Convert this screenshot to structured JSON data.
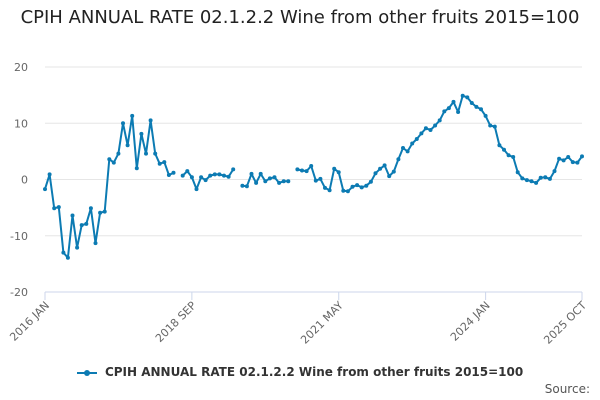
{
  "title": "CPIH ANNUAL RATE 02.1.2.2 Wine from other fruits 2015=100",
  "source_label": "Source:",
  "colors": {
    "series": "#0c7bb3",
    "grid": "#e6e6e6",
    "axis": "#ccd6eb",
    "text": "#666666"
  },
  "chart_data": {
    "type": "line",
    "title": "CPIH ANNUAL RATE 02.1.2.2 Wine from other fruits 2015=100",
    "xlabel": "",
    "ylabel": "",
    "ylim": [
      -20,
      20
    ],
    "yticks": [
      -20,
      -10,
      0,
      10,
      20
    ],
    "x_start": "2016 JAN",
    "xticks": [
      {
        "index": 0,
        "label": "2016 JAN"
      },
      {
        "index": 32,
        "label": "2018 SEP"
      },
      {
        "index": 64,
        "label": "2021 MAY"
      },
      {
        "index": 96,
        "label": "2024 JAN"
      },
      {
        "index": 117,
        "label": "2025 OCT"
      }
    ],
    "legend": "bottom-center",
    "series": [
      {
        "name": "CPIH ANNUAL RATE 02.1.2.2 Wine from other fruits 2015=100",
        "values": [
          -1.7,
          0.9,
          -5.1,
          -4.9,
          -13.0,
          -13.9,
          -6.4,
          -12.1,
          -8.1,
          -7.9,
          -5.1,
          -11.3,
          -5.9,
          -5.7,
          3.6,
          3.0,
          4.6,
          10.0,
          6.1,
          11.3,
          2.0,
          8.1,
          4.6,
          10.5,
          4.6,
          2.8,
          3.1,
          0.8,
          1.2,
          null,
          0.7,
          1.5,
          0.4,
          -1.7,
          0.4,
          -0.1,
          0.7,
          0.9,
          0.9,
          0.7,
          0.5,
          1.8,
          null,
          -1.1,
          -1.2,
          1.0,
          -0.6,
          1.0,
          -0.3,
          0.2,
          0.4,
          -0.6,
          -0.3,
          -0.3,
          null,
          1.8,
          1.6,
          1.5,
          2.4,
          -0.2,
          0.1,
          -1.5,
          -1.9,
          1.9,
          1.3,
          -2.0,
          -2.1,
          -1.3,
          -1.0,
          -1.4,
          -1.1,
          -0.4,
          1.1,
          1.9,
          2.5,
          0.6,
          1.4,
          3.6,
          5.6,
          5.0,
          6.4,
          7.2,
          8.2,
          9.1,
          8.8,
          9.6,
          10.5,
          12.1,
          12.7,
          13.8,
          12.0,
          14.9,
          14.6,
          13.6,
          12.9,
          12.5,
          11.3,
          9.6,
          9.4,
          6.1,
          5.3,
          4.3,
          4.0,
          1.3,
          0.2,
          -0.1,
          -0.3,
          -0.6,
          0.3,
          0.4,
          0.1,
          1.5,
          3.7,
          3.4,
          4.0,
          3.1,
          3.0,
          4.1
        ]
      }
    ]
  }
}
